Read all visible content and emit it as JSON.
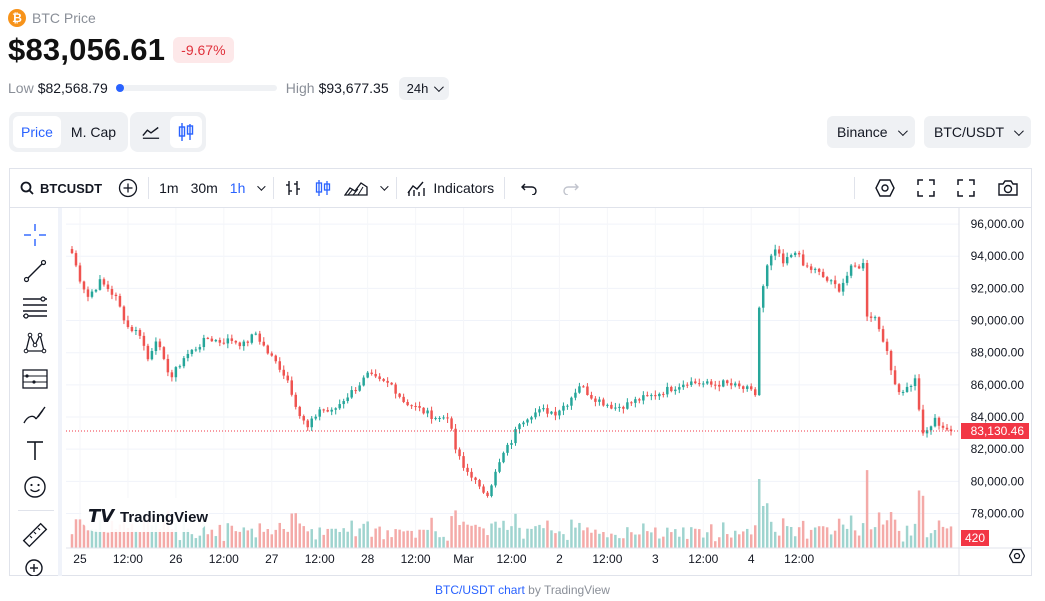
{
  "header": {
    "title": "BTC Price",
    "logo_glyph": "₿",
    "price": "$83,056.61",
    "change": "-9.67%",
    "low_label": "Low",
    "low_value": "$82,568.79",
    "high_label": "High",
    "high_value": "$93,677.35",
    "range_position": 0.0,
    "period": "24h"
  },
  "toggles": {
    "metric": [
      {
        "label": "Price",
        "active": true
      },
      {
        "label": "M. Cap",
        "active": false
      }
    ],
    "chart_types": [
      {
        "icon": "line-chart-icon",
        "active": false
      },
      {
        "icon": "candlestick-icon",
        "active": true
      }
    ]
  },
  "selectors": {
    "exchange": "Binance",
    "pair": "BTC/USDT"
  },
  "toolbar": {
    "symbol": "BTCUSDT",
    "intervals": [
      {
        "label": "1m",
        "active": false
      },
      {
        "label": "30m",
        "active": false
      },
      {
        "label": "1h",
        "active": true
      }
    ],
    "indicators": "Indicators"
  },
  "footer": {
    "link_text": "BTC/USDT chart",
    "suffix": " by TradingView"
  },
  "watermark": "TradingView",
  "colors": {
    "up": "#26a69a",
    "down": "#ef5350",
    "up_vol": "#9fd4cf",
    "down_vol": "#f4aaa8",
    "accent": "#2962ff",
    "last_price": "#f23645"
  },
  "chart_data": {
    "type": "candlestick",
    "symbol": "BTCUSDT",
    "interval": "1h",
    "y_ticks": [
      96000,
      94000,
      92000,
      90000,
      88000,
      86000,
      84000,
      82000,
      80000,
      78000
    ],
    "y_tick_labels": [
      "96,000.00",
      "94,000.00",
      "92,000.00",
      "90,000.00",
      "88,000.00",
      "86,000.00",
      "84,000.00",
      "82,000.00",
      "80,000.00",
      "78,000.00"
    ],
    "ylim": [
      76600,
      97000
    ],
    "x_labels": [
      "25",
      "12:00",
      "26",
      "12:00",
      "27",
      "12:00",
      "28",
      "12:00",
      "Mar",
      "12:00",
      "2",
      "12:00",
      "3",
      "12:00",
      "4",
      "12:00"
    ],
    "last_price": 83130.46,
    "last_price_label": "83,130.46",
    "last_volume_label": "420",
    "anchors": [
      [
        0,
        94200
      ],
      [
        2,
        92600
      ],
      [
        4,
        91500
      ],
      [
        7,
        92400
      ],
      [
        9,
        92000
      ],
      [
        11,
        91400
      ],
      [
        14,
        89600
      ],
      [
        17,
        89200
      ],
      [
        19,
        87600
      ],
      [
        21,
        88900
      ],
      [
        23,
        87400
      ],
      [
        25,
        86500
      ],
      [
        28,
        87700
      ],
      [
        31,
        88300
      ],
      [
        34,
        88900
      ],
      [
        37,
        88700
      ],
      [
        40,
        88800
      ],
      [
        43,
        88500
      ],
      [
        46,
        89200
      ],
      [
        49,
        88000
      ],
      [
        52,
        87100
      ],
      [
        54,
        86300
      ],
      [
        57,
        84100
      ],
      [
        59,
        83300
      ],
      [
        62,
        84500
      ],
      [
        65,
        84300
      ],
      [
        68,
        85100
      ],
      [
        71,
        85800
      ],
      [
        74,
        86600
      ],
      [
        77,
        86200
      ],
      [
        80,
        86000
      ],
      [
        83,
        85000
      ],
      [
        86,
        84600
      ],
      [
        89,
        84200
      ],
      [
        92,
        83900
      ],
      [
        94,
        84100
      ],
      [
        96,
        82000
      ],
      [
        98,
        80800
      ],
      [
        100,
        80400
      ],
      [
        102,
        79500
      ],
      [
        104,
        79300
      ],
      [
        106,
        80500
      ],
      [
        108,
        81700
      ],
      [
        110,
        82500
      ],
      [
        112,
        83700
      ],
      [
        115,
        84200
      ],
      [
        118,
        84400
      ],
      [
        121,
        84300
      ],
      [
        124,
        84900
      ],
      [
        127,
        86000
      ],
      [
        130,
        85300
      ],
      [
        133,
        84900
      ],
      [
        136,
        84600
      ],
      [
        139,
        84800
      ],
      [
        142,
        85100
      ],
      [
        145,
        85300
      ],
      [
        148,
        85600
      ],
      [
        151,
        85900
      ],
      [
        154,
        86200
      ],
      [
        157,
        86100
      ],
      [
        160,
        86000
      ],
      [
        163,
        86100
      ],
      [
        166,
        85900
      ],
      [
        169,
        85700
      ],
      [
        171,
        85400
      ],
      [
        172,
        90800
      ],
      [
        174,
        93300
      ],
      [
        176,
        94400
      ],
      [
        178,
        93500
      ],
      [
        181,
        94400
      ],
      [
        183,
        93400
      ],
      [
        186,
        93100
      ],
      [
        189,
        92500
      ],
      [
        192,
        92000
      ],
      [
        195,
        93200
      ],
      [
        198,
        93500
      ],
      [
        199,
        90400
      ],
      [
        201,
        90200
      ],
      [
        203,
        88900
      ],
      [
        205,
        86900
      ],
      [
        207,
        85600
      ],
      [
        209,
        85800
      ],
      [
        211,
        86300
      ],
      [
        213,
        82800
      ],
      [
        216,
        83800
      ],
      [
        218,
        83400
      ],
      [
        220,
        83130
      ]
    ],
    "volume_note": "volume bars coloured by candle direction"
  }
}
